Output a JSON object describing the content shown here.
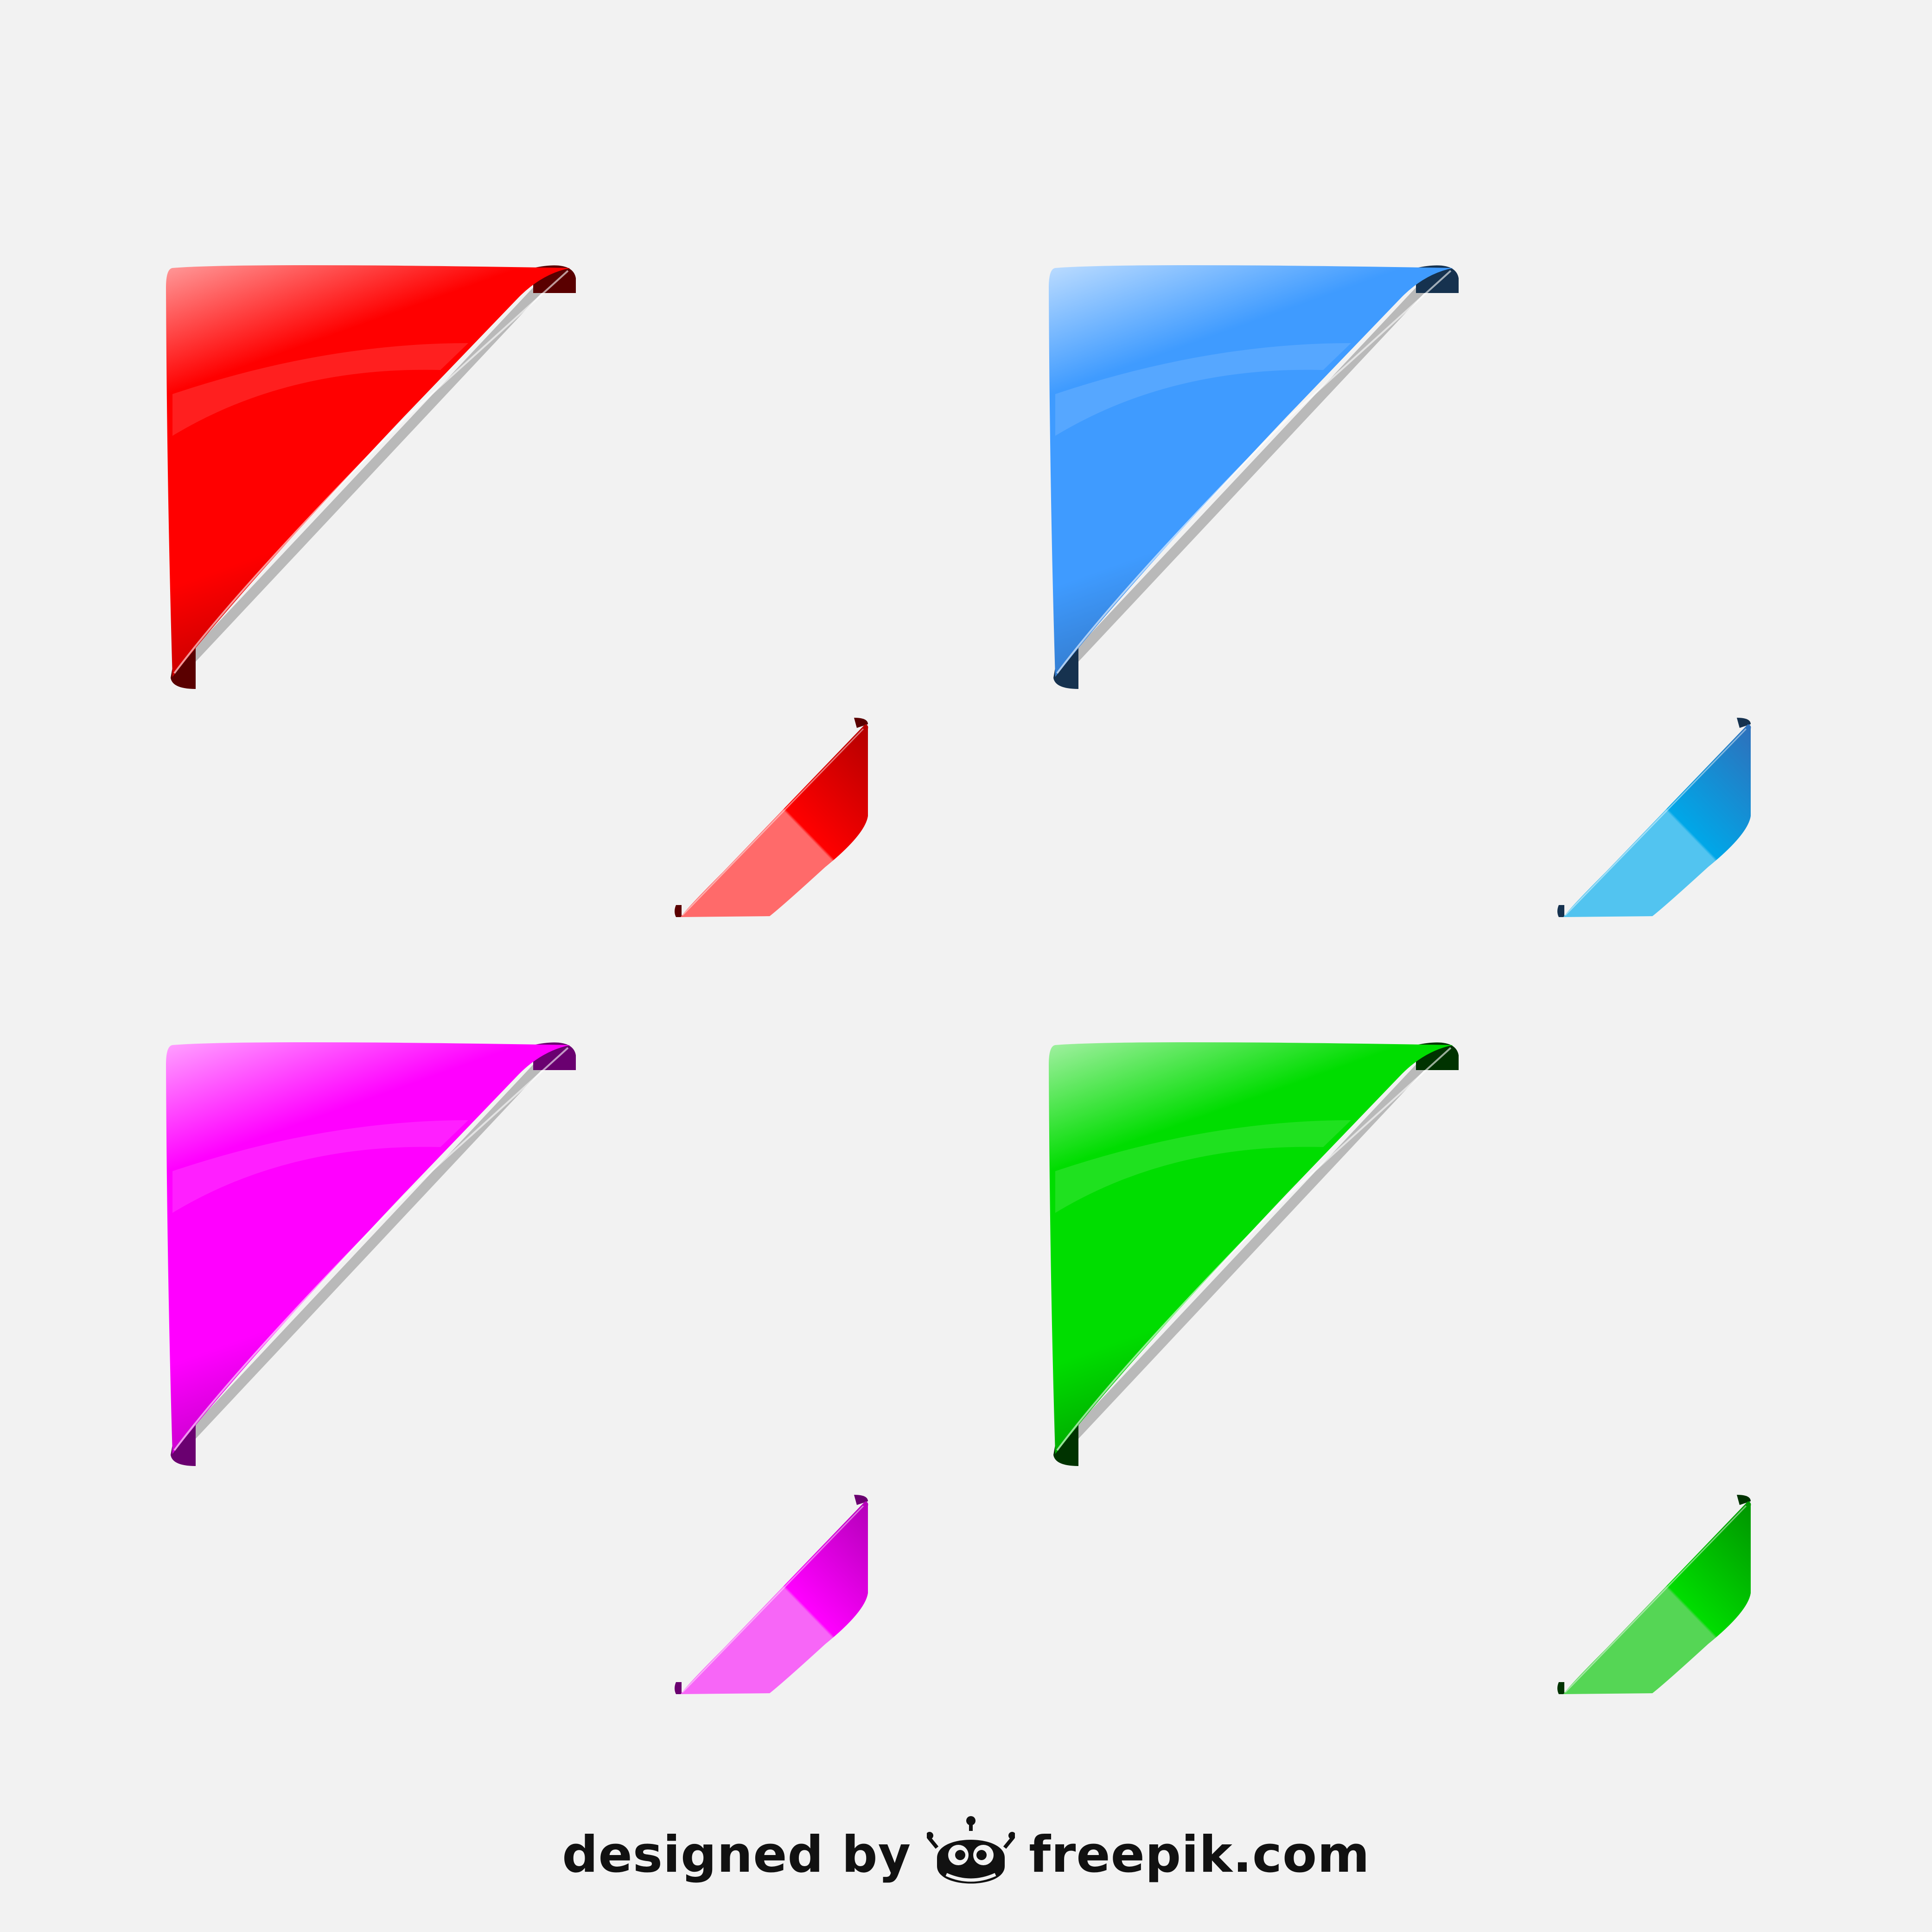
{
  "corner_sets": [
    {
      "name": "red",
      "base": "#ff0000",
      "light": "#ff9a9a",
      "dark": "#b30000",
      "edge": "#5a0000",
      "small_light": "#ff6a6a"
    },
    {
      "name": "blue",
      "base": "#3f9bff",
      "light": "#bcdcff",
      "dark": "#2f6fba",
      "edge": "#16324f",
      "small_light": "#52c4f0",
      "small_base": "#00a7e8"
    },
    {
      "name": "magenta",
      "base": "#ff00ff",
      "light": "#ffa2ff",
      "dark": "#b300b8",
      "edge": "#6a0070",
      "small_light": "#f766f7"
    },
    {
      "name": "green",
      "base": "#00dd00",
      "light": "#a2f0a2",
      "dark": "#009400",
      "edge": "#003300",
      "small_light": "#55d655"
    }
  ],
  "credit": {
    "prefix": "designed by",
    "site": "freepik.com",
    "logo_icon": "freepik-robot-icon"
  }
}
